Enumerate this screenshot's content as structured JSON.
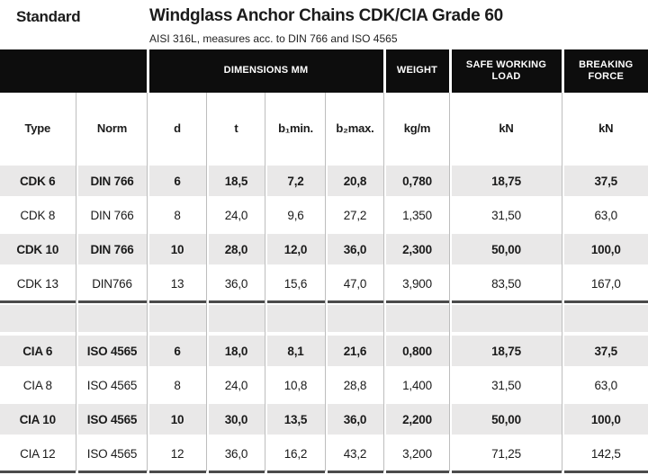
{
  "theme": {
    "band": "#0d0d0d",
    "gray": "#e9e8e8",
    "divider": "#4b4b4b",
    "line": "#bdbdbd",
    "ink": "#1b1b1b"
  },
  "header": {
    "standard": "Standard",
    "title": "Windglass Anchor Chains CDK/CIA Grade 60",
    "subtitle": "AISI 316L, measures acc. to DIN 766 and ISO 4565"
  },
  "table": {
    "band": [
      {
        "label": ""
      },
      {
        "label": "DIMENSIONS MM"
      },
      {
        "label": "WEIGHT"
      },
      {
        "label": "SAFE WORKING LOAD"
      },
      {
        "label": "BREAKING FORCE"
      }
    ],
    "columns": [
      "Type",
      "Norm",
      "d",
      "t",
      "b₁min.",
      "b₂max.",
      "kg/m",
      "kN",
      "kN"
    ],
    "groups": [
      {
        "name": "CDK",
        "rows": [
          {
            "emphasis": true,
            "cells": [
              "CDK 6",
              "DIN 766",
              "6",
              "18,5",
              "7,2",
              "20,8",
              "0,780",
              "18,75",
              "37,5"
            ]
          },
          {
            "emphasis": false,
            "cells": [
              "CDK 8",
              "DIN 766",
              "8",
              "24,0",
              "9,6",
              "27,2",
              "1,350",
              "31,50",
              "63,0"
            ]
          },
          {
            "emphasis": true,
            "cells": [
              "CDK 10",
              "DIN 766",
              "10",
              "28,0",
              "12,0",
              "36,0",
              "2,300",
              "50,00",
              "100,0"
            ]
          },
          {
            "emphasis": false,
            "cells": [
              "CDK 13",
              "DIN766",
              "13",
              "36,0",
              "15,6",
              "47,0",
              "3,900",
              "83,50",
              "167,0"
            ]
          }
        ]
      },
      {
        "name": "CIA",
        "rows": [
          {
            "emphasis": true,
            "cells": [
              "CIA 6",
              "ISO 4565",
              "6",
              "18,0",
              "8,1",
              "21,6",
              "0,800",
              "18,75",
              "37,5"
            ]
          },
          {
            "emphasis": false,
            "cells": [
              "CIA 8",
              "ISO 4565",
              "8",
              "24,0",
              "10,8",
              "28,8",
              "1,400",
              "31,50",
              "63,0"
            ]
          },
          {
            "emphasis": true,
            "cells": [
              "CIA 10",
              "ISO 4565",
              "10",
              "30,0",
              "13,5",
              "36,0",
              "2,200",
              "50,00",
              "100,0"
            ]
          },
          {
            "emphasis": false,
            "cells": [
              "CIA 12",
              "ISO 4565",
              "12",
              "36,0",
              "16,2",
              "43,2",
              "3,200",
              "71,25",
              "142,5"
            ]
          }
        ]
      }
    ]
  }
}
